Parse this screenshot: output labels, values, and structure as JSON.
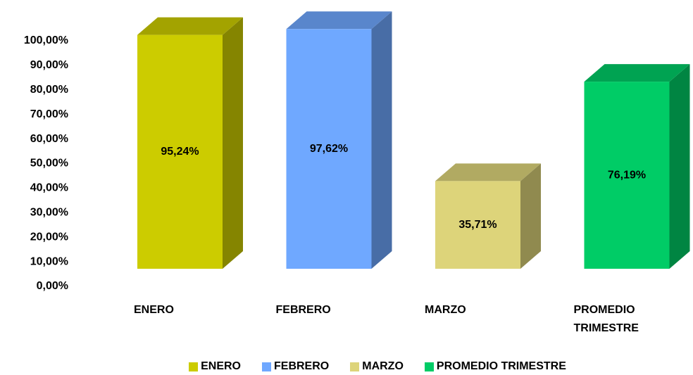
{
  "chart_data": {
    "type": "bar3d",
    "categories": [
      "ENERO",
      "FEBRERO",
      "MARZO",
      "PROMEDIO TRIMESTRE"
    ],
    "values": [
      95.24,
      97.62,
      35.71,
      76.19
    ],
    "value_labels": [
      "95,24%",
      "97,62%",
      "35,71%",
      "76,19%"
    ],
    "colors": [
      "#cccc00",
      "#6fa8ff",
      "#ddd47a",
      "#00cc66"
    ],
    "ylim": [
      0,
      100
    ],
    "yticks": [
      {
        "value": 0,
        "label": "0,00%"
      },
      {
        "value": 10,
        "label": "10,00%"
      },
      {
        "value": 20,
        "label": "20,00%"
      },
      {
        "value": 30,
        "label": "30,00%"
      },
      {
        "value": 40,
        "label": "40,00%"
      },
      {
        "value": 50,
        "label": "50,00%"
      },
      {
        "value": 60,
        "label": "60,00%"
      },
      {
        "value": 70,
        "label": "70,00%"
      },
      {
        "value": 80,
        "label": "80,00%"
      },
      {
        "value": 90,
        "label": "90,00%"
      },
      {
        "value": 100,
        "label": "100,00%"
      }
    ],
    "grid": false,
    "legend": "bottom"
  }
}
